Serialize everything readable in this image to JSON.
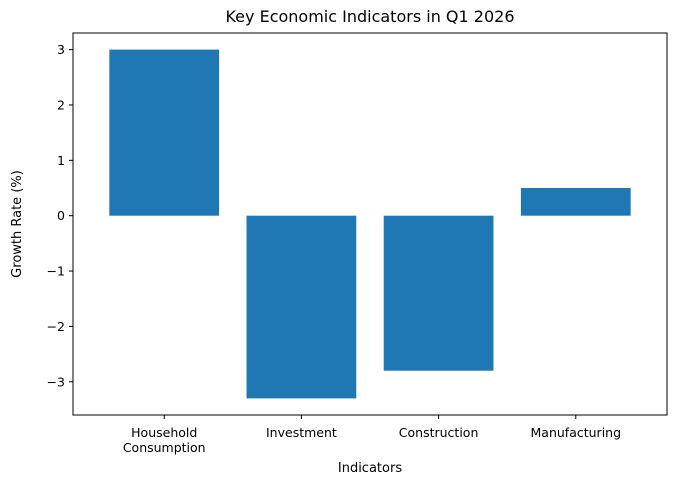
{
  "chart_data": {
    "type": "bar",
    "title": "Key Economic Indicators in Q1 2026",
    "xlabel": "Indicators",
    "ylabel": "Growth Rate (%)",
    "categories": [
      [
        "Household",
        "Consumption"
      ],
      [
        "Investment"
      ],
      [
        "Construction"
      ],
      [
        "Manufacturing"
      ]
    ],
    "values": [
      3.0,
      -3.3,
      -2.8,
      0.5
    ],
    "ylim": [
      -3.6,
      3.3
    ],
    "yticks": [
      3,
      2,
      1,
      0,
      -1,
      -2,
      -3
    ],
    "ytick_labels": [
      "3",
      "2",
      "1",
      "0",
      "−1",
      "−2",
      "−3"
    ],
    "bar_color": "#1f77b4",
    "grid": false,
    "legend": "none"
  }
}
